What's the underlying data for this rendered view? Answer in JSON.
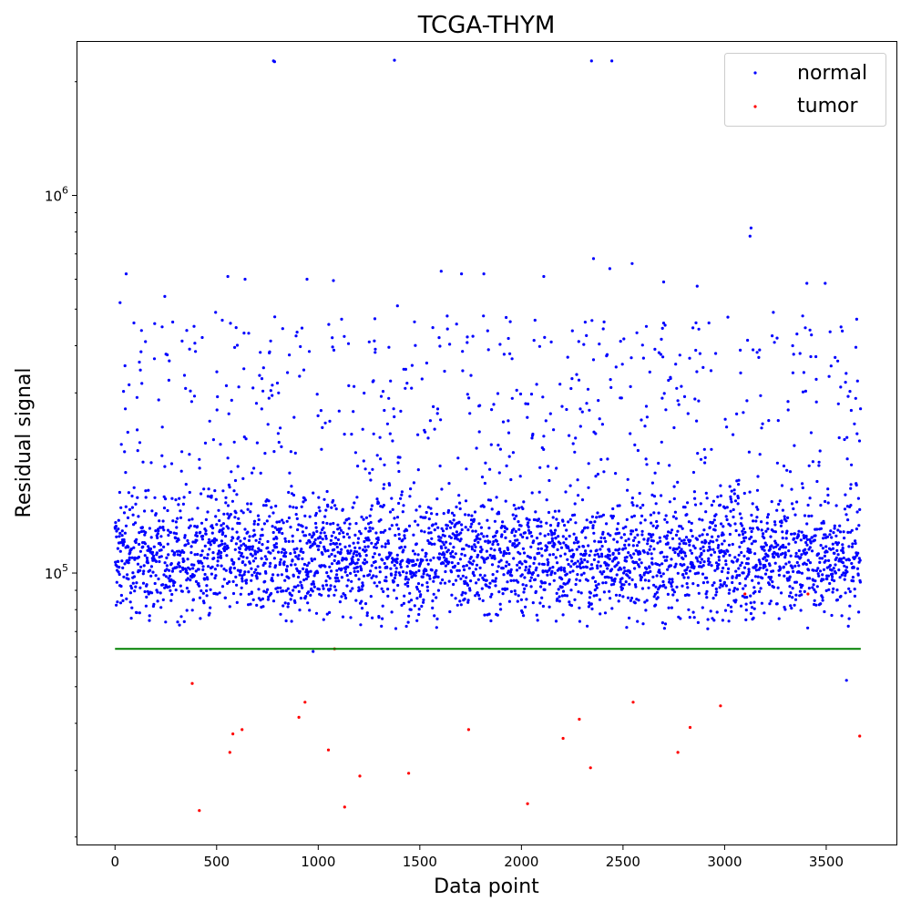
{
  "chart_data": {
    "type": "scatter",
    "title": "TCGA-THYM",
    "xlabel": "Data point",
    "ylabel": "Residual signal",
    "yscale": "log",
    "xlim": [
      -185,
      3850
    ],
    "ylim": [
      19000,
      2550000
    ],
    "x_ticks": [
      0,
      500,
      1000,
      1500,
      2000,
      2500,
      3000,
      3500
    ],
    "x_tick_labels": [
      "0",
      "500",
      "1000",
      "1500",
      "2000",
      "2500",
      "3000",
      "3500"
    ],
    "y_ticks": [
      100000,
      1000000
    ],
    "y_tick_labels": [
      {
        "base": "10",
        "exp": "5"
      },
      {
        "base": "10",
        "exp": "6"
      }
    ],
    "grid": false,
    "legend_position": "top-right",
    "threshold_line": {
      "y": 63000,
      "x_range": [
        0,
        3670
      ],
      "color": "#008000"
    },
    "series": [
      {
        "name": "normal",
        "color": "#0000ff",
        "n_points": 3670,
        "typical_range": [
          75000,
          160000
        ],
        "outliers": [
          {
            "x": 780,
            "y": 2270000
          },
          {
            "x": 785,
            "y": 2260000
          },
          {
            "x": 1375,
            "y": 2280000
          },
          {
            "x": 2345,
            "y": 2270000
          },
          {
            "x": 2445,
            "y": 2270000
          },
          {
            "x": 3130,
            "y": 820000
          },
          {
            "x": 3125,
            "y": 780000
          },
          {
            "x": 2355,
            "y": 680000
          },
          {
            "x": 2545,
            "y": 660000
          },
          {
            "x": 2435,
            "y": 640000
          },
          {
            "x": 55,
            "y": 620000
          },
          {
            "x": 555,
            "y": 610000
          },
          {
            "x": 640,
            "y": 600000
          },
          {
            "x": 945,
            "y": 600000
          },
          {
            "x": 1075,
            "y": 595000
          },
          {
            "x": 1605,
            "y": 630000
          },
          {
            "x": 1705,
            "y": 620000
          },
          {
            "x": 1815,
            "y": 620000
          },
          {
            "x": 2110,
            "y": 610000
          },
          {
            "x": 2700,
            "y": 590000
          },
          {
            "x": 3405,
            "y": 585000
          },
          {
            "x": 3495,
            "y": 585000
          },
          {
            "x": 2865,
            "y": 575000
          },
          {
            "x": 3595,
            "y": 320000
          },
          {
            "x": 3650,
            "y": 470000
          },
          {
            "x": 25,
            "y": 520000
          },
          {
            "x": 495,
            "y": 490000
          },
          {
            "x": 245,
            "y": 540000
          },
          {
            "x": 1390,
            "y": 510000
          },
          {
            "x": 3240,
            "y": 490000
          },
          {
            "x": 3420,
            "y": 440000
          },
          {
            "x": 3335,
            "y": 400000
          },
          {
            "x": 3140,
            "y": 390000
          },
          {
            "x": 150,
            "y": 410000
          },
          {
            "x": 1115,
            "y": 470000
          },
          {
            "x": 2615,
            "y": 450000
          },
          {
            "x": 975,
            "y": 62000
          },
          {
            "x": 3600,
            "y": 52000
          }
        ]
      },
      {
        "name": "tumor",
        "color": "#ff0000",
        "points": [
          {
            "x": 380,
            "y": 51000
          },
          {
            "x": 415,
            "y": 23500
          },
          {
            "x": 565,
            "y": 33500
          },
          {
            "x": 580,
            "y": 37500
          },
          {
            "x": 625,
            "y": 38500
          },
          {
            "x": 905,
            "y": 41500
          },
          {
            "x": 935,
            "y": 45500
          },
          {
            "x": 1050,
            "y": 34000
          },
          {
            "x": 1080,
            "y": 63000
          },
          {
            "x": 1130,
            "y": 24000
          },
          {
            "x": 1205,
            "y": 29000
          },
          {
            "x": 1445,
            "y": 29500
          },
          {
            "x": 1740,
            "y": 38500
          },
          {
            "x": 2030,
            "y": 24500
          },
          {
            "x": 2205,
            "y": 36500
          },
          {
            "x": 2285,
            "y": 41000
          },
          {
            "x": 2340,
            "y": 30500
          },
          {
            "x": 2550,
            "y": 45500
          },
          {
            "x": 2770,
            "y": 33500
          },
          {
            "x": 2830,
            "y": 39000
          },
          {
            "x": 2980,
            "y": 44500
          },
          {
            "x": 3100,
            "y": 88000
          },
          {
            "x": 3410,
            "y": 88000
          },
          {
            "x": 3665,
            "y": 37000
          }
        ]
      }
    ]
  }
}
